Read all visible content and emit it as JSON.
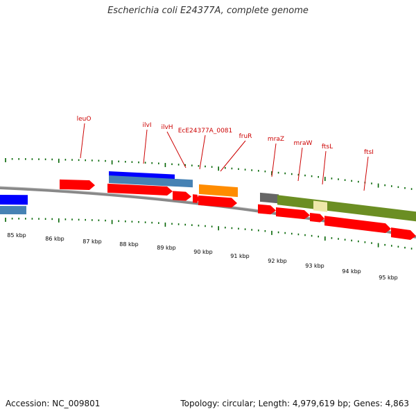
{
  "title": "Escherichia coli E24377A, complete genome",
  "footer": {
    "accession": "Accession: NC_009801",
    "summary": "Topology: circular; Length: 4,979,619 bp; Genes: 4,863"
  },
  "scale_labels": [
    "85 kbp",
    "86 kbp",
    "87 kbp",
    "88 kbp",
    "89 kbp",
    "90 kbp",
    "91 kbp",
    "92 kbp",
    "93 kbp",
    "94 kbp",
    "95 kbp"
  ],
  "gene_labels": [
    "leuO",
    "ilvI",
    "ilvH",
    "EcE24377A_0081",
    "fruR",
    "mraZ",
    "mraW",
    "ftsL",
    "ftsI"
  ],
  "colors": {
    "cds": "#ff0000",
    "rrna_blue": "#0000ff",
    "light_blue": "#4682b4",
    "orange": "#ff8c00",
    "olive": "#6b8e23",
    "pale_yellow": "#eee8aa",
    "grey": "#666666",
    "tick_green": "#006400",
    "label_red": "#cc0000"
  }
}
